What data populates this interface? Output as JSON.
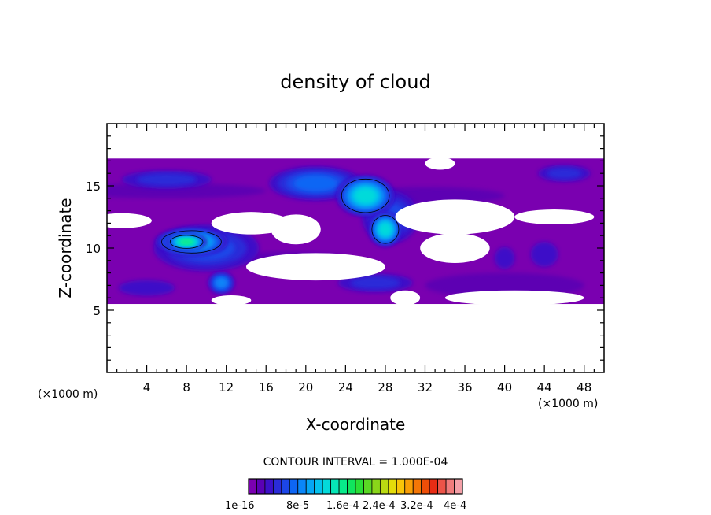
{
  "chart_data": {
    "type": "heatmap",
    "title": "density of cloud",
    "xlabel": "X-coordinate",
    "ylabel": "Z-coordinate",
    "x_unit_left": "(×1000 m)",
    "x_unit_right": "(×1000 m)",
    "xlim": [
      0,
      50
    ],
    "ylim": [
      0,
      20
    ],
    "x_ticks": [
      4,
      8,
      12,
      16,
      20,
      24,
      28,
      32,
      36,
      40,
      44,
      48
    ],
    "y_ticks": [
      5,
      10,
      15
    ],
    "contour_interval": "CONTOUR INTERVAL = 1.000E-04",
    "colorbar": {
      "colors": [
        "#7a00b0",
        "#5a00b4",
        "#3c10c8",
        "#2a2cd8",
        "#1c46e8",
        "#0e66f4",
        "#0a86f8",
        "#06a6f4",
        "#04c2ee",
        "#04dada",
        "#06e6b6",
        "#08ea8a",
        "#10e45e",
        "#2ade36",
        "#5ad824",
        "#8ad61a",
        "#bada12",
        "#e4dc0a",
        "#f8c408",
        "#f89e06",
        "#f47606",
        "#ee4e08",
        "#e82c14",
        "#ec5448",
        "#f07c7c",
        "#f4a0a8"
      ],
      "labels": [
        "1e-16",
        "8e-5",
        "1.6e-4",
        "2.4e-4",
        "3.2e-4",
        "4e-4"
      ]
    },
    "regions": [
      {
        "level": 0,
        "xmin": 0,
        "xmax": 50,
        "zmin": 5.5,
        "zmax": 17.2,
        "description_free": true
      },
      {
        "level": 0,
        "xmin": 0,
        "xmax": 50,
        "zmin": 12.8,
        "zmax": 17.2
      },
      {
        "level": 0,
        "xmin": 0,
        "xmax": 50,
        "zmin": 5.5,
        "zmax": 11.5
      }
    ],
    "features": [
      {
        "level": 5,
        "x": 21,
        "z": 15.2,
        "rx": 5.5,
        "rz": 1.6
      },
      {
        "level": 9,
        "x": 26,
        "z": 14.2,
        "rx": 3.2,
        "rz": 1.8
      },
      {
        "level": 9,
        "x": 28,
        "z": 11.5,
        "rx": 1.8,
        "rz": 1.5
      },
      {
        "level": 4,
        "x": 28.5,
        "z": 12.5,
        "rx": 3.5,
        "rz": 2.6
      },
      {
        "level": 9,
        "x": 8.5,
        "z": 10.5,
        "rx": 4.0,
        "rz": 1.2
      },
      {
        "level": 11,
        "x": 8,
        "z": 10.5,
        "rx": 2.2,
        "rz": 0.7
      },
      {
        "level": 4,
        "x": 10,
        "z": 10,
        "rx": 6.5,
        "rz": 2.3
      },
      {
        "level": 6,
        "x": 11.5,
        "z": 7.2,
        "rx": 1.5,
        "rz": 1.0
      },
      {
        "level": 3,
        "x": 6,
        "z": 15.5,
        "rx": 6,
        "rz": 1.0
      },
      {
        "level": 3,
        "x": 46,
        "z": 16.0,
        "rx": 3.5,
        "rz": 0.9
      },
      {
        "level": 2,
        "x": 44,
        "z": 9.5,
        "rx": 2.2,
        "rz": 1.6
      },
      {
        "level": 2,
        "x": 40,
        "z": 9.2,
        "rx": 1.6,
        "rz": 1.4
      },
      {
        "level": 3,
        "x": 27,
        "z": 7.2,
        "rx": 5.0,
        "rz": 1.0
      },
      {
        "level": 2,
        "x": 4,
        "z": 6.8,
        "rx": 4.5,
        "rz": 1.0
      }
    ],
    "gaps": [
      {
        "x": 1.5,
        "z": 12.2,
        "rx": 3.0,
        "rz": 0.6
      },
      {
        "x": 14.5,
        "z": 12.0,
        "rx": 4.0,
        "rz": 0.9
      },
      {
        "x": 19,
        "z": 11.5,
        "rx": 2.5,
        "rz": 1.2
      },
      {
        "x": 35,
        "z": 12.5,
        "rx": 6.0,
        "rz": 1.4
      },
      {
        "x": 35,
        "z": 10.0,
        "rx": 3.5,
        "rz": 1.2
      },
      {
        "x": 21,
        "z": 8.5,
        "rx": 7.0,
        "rz": 1.1
      },
      {
        "x": 30,
        "z": 6.0,
        "rx": 1.5,
        "rz": 0.6
      },
      {
        "x": 45,
        "z": 12.5,
        "rx": 4.0,
        "rz": 0.6
      },
      {
        "x": 41,
        "z": 6.0,
        "rx": 7,
        "rz": 0.6
      },
      {
        "x": 12.5,
        "z": 5.8,
        "rx": 2,
        "rz": 0.4
      },
      {
        "x": 33.5,
        "z": 16.8,
        "rx": 1.5,
        "rz": 0.5
      }
    ],
    "grid": false,
    "legend": "bottom-center"
  }
}
